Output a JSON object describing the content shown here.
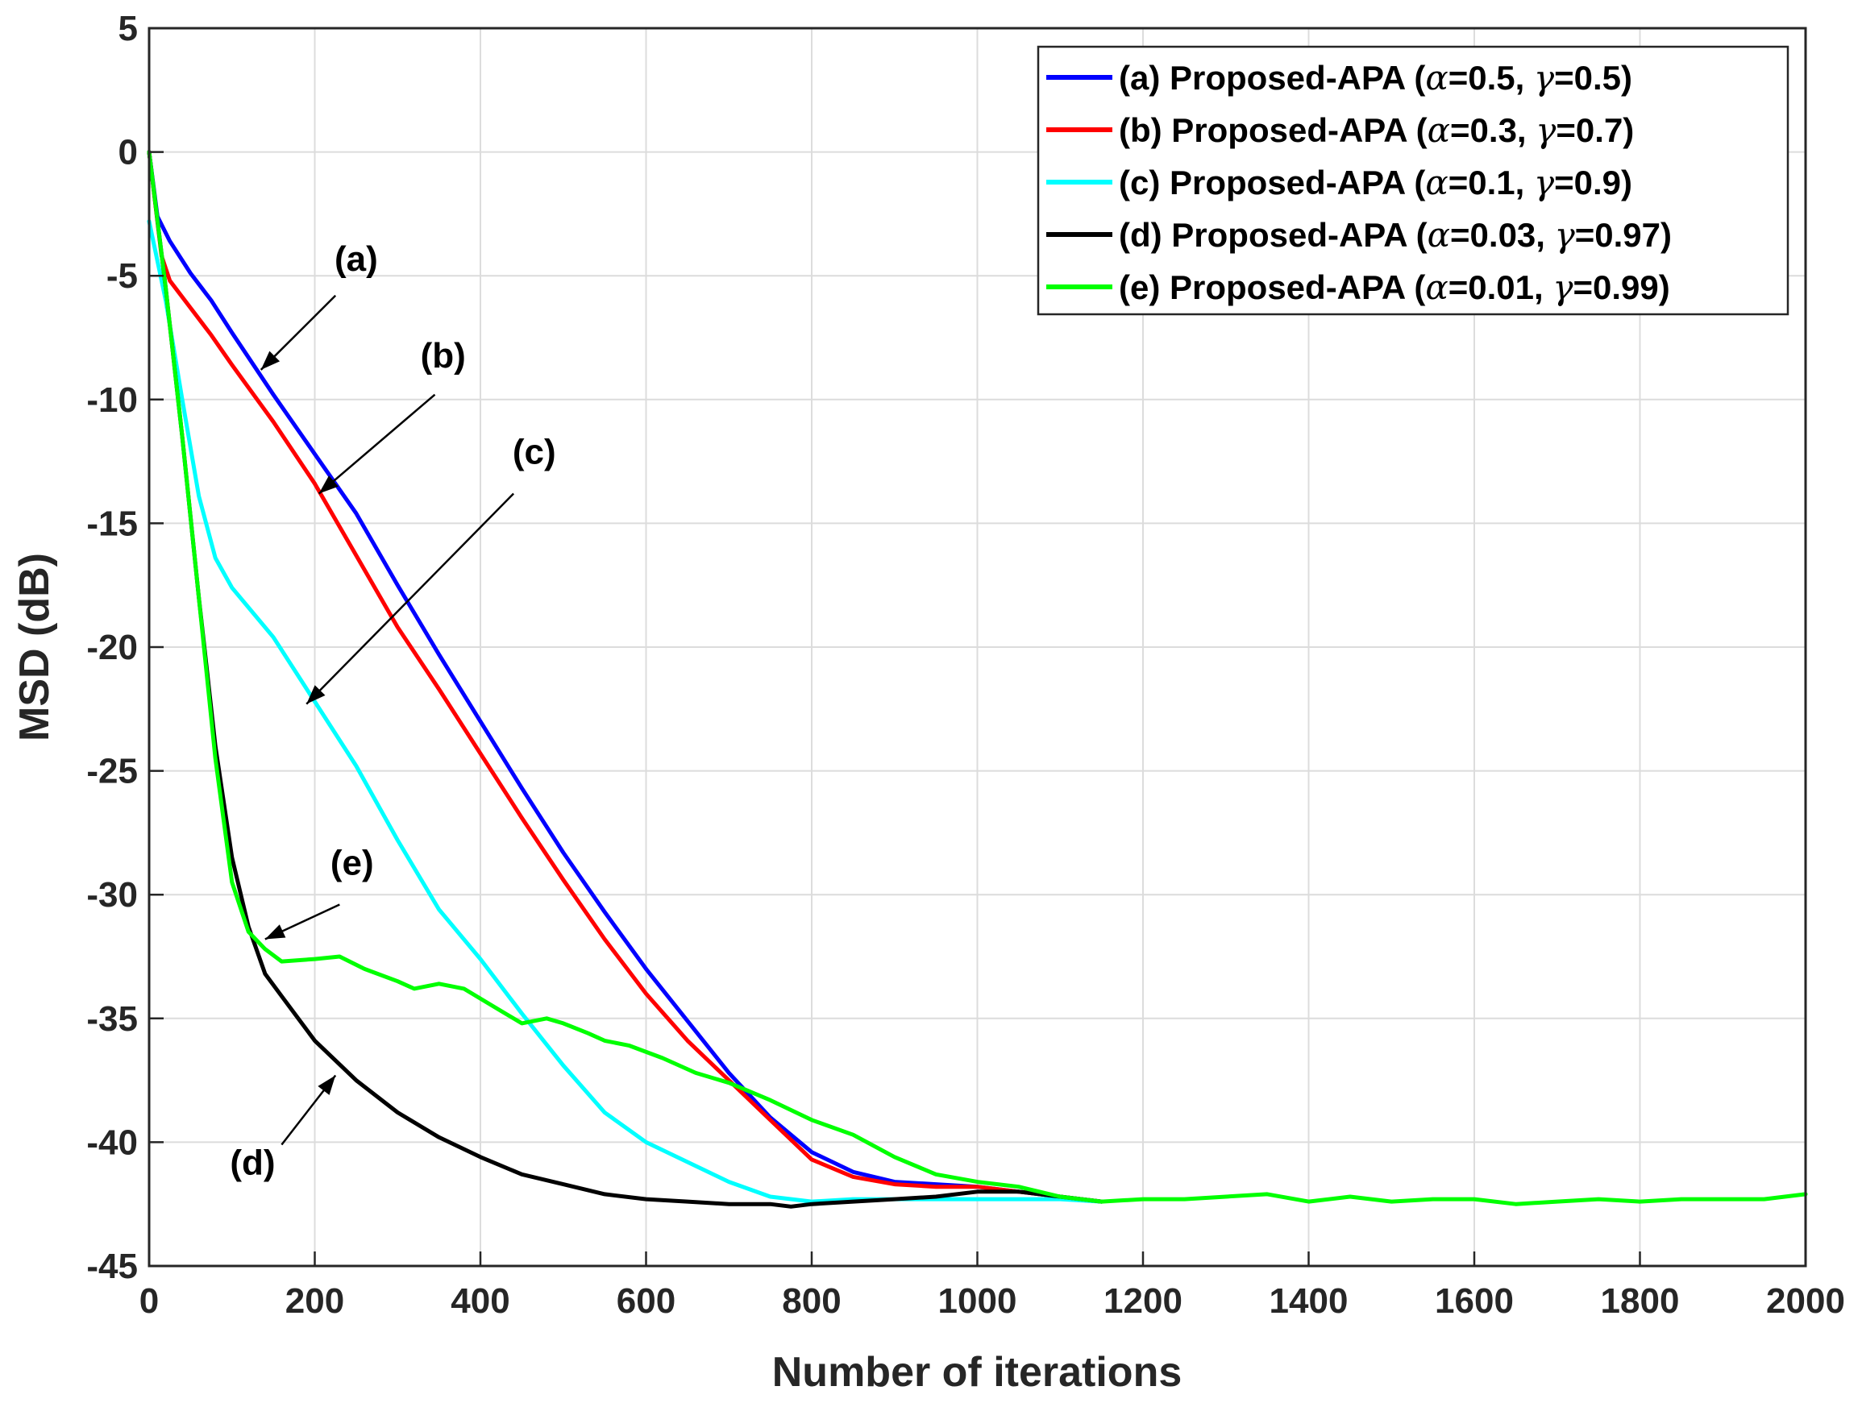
{
  "chart_data": {
    "type": "line",
    "title": "",
    "xlabel": "Number of iterations",
    "ylabel": "MSD (dB)",
    "xlim": [
      0,
      2000
    ],
    "ylim": [
      -45,
      5
    ],
    "grid": true,
    "legend_position": "top-right",
    "xticks": [
      0,
      200,
      400,
      600,
      800,
      1000,
      1200,
      1400,
      1600,
      1800,
      2000
    ],
    "xtick_labels": [
      "0",
      "200",
      "400",
      "600",
      "800",
      "1000",
      "1200",
      "1400",
      "1600",
      "1800",
      "2000"
    ],
    "yticks": [
      5,
      0,
      -5,
      -10,
      -15,
      -20,
      -25,
      -30,
      -35,
      -40,
      -45
    ],
    "ytick_labels": [
      "5",
      "0",
      "-5",
      "-10",
      "-15",
      "-20",
      "-25",
      "-30",
      "-35",
      "-40",
      "-45"
    ],
    "series": [
      {
        "key": "a",
        "color": "#0000ff",
        "legend": {
          "prefix": "(a) Proposed-APA (",
          "alpha_sym": "α",
          "alpha_val": "=0.5, ",
          "gamma_sym": "γ",
          "gamma_val": "=0.5)"
        },
        "points": [
          [
            0,
            0
          ],
          [
            10,
            -2.6
          ],
          [
            25,
            -3.6
          ],
          [
            50,
            -4.9
          ],
          [
            75,
            -6.0
          ],
          [
            100,
            -7.3
          ],
          [
            150,
            -9.8
          ],
          [
            200,
            -12.2
          ],
          [
            250,
            -14.6
          ],
          [
            300,
            -17.5
          ],
          [
            350,
            -20.3
          ],
          [
            400,
            -23.0
          ],
          [
            450,
            -25.7
          ],
          [
            500,
            -28.3
          ],
          [
            550,
            -30.7
          ],
          [
            600,
            -33.0
          ],
          [
            650,
            -35.1
          ],
          [
            700,
            -37.2
          ],
          [
            750,
            -39.0
          ],
          [
            800,
            -40.4
          ],
          [
            850,
            -41.2
          ],
          [
            900,
            -41.6
          ],
          [
            950,
            -41.7
          ],
          [
            1000,
            -41.8
          ],
          [
            1050,
            -42.0
          ],
          [
            1100,
            -42.2
          ],
          [
            1150,
            -42.4
          ]
        ]
      },
      {
        "key": "b",
        "color": "#ff0000",
        "legend": {
          "prefix": "(b) Proposed-APA (",
          "alpha_sym": "α",
          "alpha_val": "=0.3, ",
          "gamma_sym": "γ",
          "gamma_val": "=0.7)"
        },
        "points": [
          [
            0,
            0
          ],
          [
            15,
            -4.2
          ],
          [
            25,
            -5.2
          ],
          [
            50,
            -6.3
          ],
          [
            75,
            -7.4
          ],
          [
            100,
            -8.6
          ],
          [
            150,
            -10.9
          ],
          [
            200,
            -13.4
          ],
          [
            250,
            -16.3
          ],
          [
            300,
            -19.2
          ],
          [
            350,
            -21.7
          ],
          [
            400,
            -24.3
          ],
          [
            450,
            -26.9
          ],
          [
            500,
            -29.4
          ],
          [
            550,
            -31.8
          ],
          [
            600,
            -34.0
          ],
          [
            650,
            -35.9
          ],
          [
            700,
            -37.5
          ],
          [
            750,
            -39.1
          ],
          [
            800,
            -40.7
          ],
          [
            850,
            -41.4
          ],
          [
            900,
            -41.7
          ],
          [
            950,
            -41.8
          ],
          [
            1000,
            -41.8
          ],
          [
            1050,
            -42.0
          ],
          [
            1100,
            -42.2
          ],
          [
            1150,
            -42.4
          ]
        ]
      },
      {
        "key": "c",
        "color": "#00ffff",
        "legend": {
          "prefix": "(c) Proposed-APA (",
          "alpha_sym": "α",
          "alpha_val": "=0.1, ",
          "gamma_sym": "γ",
          "gamma_val": "=0.9)"
        },
        "points": [
          [
            0,
            -2.8
          ],
          [
            20,
            -6.0
          ],
          [
            40,
            -10.0
          ],
          [
            60,
            -13.9
          ],
          [
            80,
            -16.4
          ],
          [
            100,
            -17.6
          ],
          [
            150,
            -19.6
          ],
          [
            200,
            -22.2
          ],
          [
            250,
            -24.8
          ],
          [
            300,
            -27.8
          ],
          [
            350,
            -30.6
          ],
          [
            400,
            -32.6
          ],
          [
            450,
            -34.8
          ],
          [
            500,
            -36.9
          ],
          [
            550,
            -38.8
          ],
          [
            600,
            -40.0
          ],
          [
            650,
            -40.8
          ],
          [
            700,
            -41.6
          ],
          [
            750,
            -42.2
          ],
          [
            800,
            -42.4
          ],
          [
            850,
            -42.3
          ],
          [
            900,
            -42.3
          ],
          [
            950,
            -42.3
          ],
          [
            1000,
            -42.3
          ],
          [
            1050,
            -42.3
          ],
          [
            1100,
            -42.3
          ],
          [
            1150,
            -42.4
          ]
        ]
      },
      {
        "key": "d",
        "color": "#000000",
        "legend": {
          "prefix": "(d) Proposed-APA (",
          "alpha_sym": "α",
          "alpha_val": "=0.03, ",
          "gamma_sym": "γ",
          "gamma_val": "=0.97)"
        },
        "points": [
          [
            0,
            0
          ],
          [
            20,
            -5.5
          ],
          [
            40,
            -11.5
          ],
          [
            60,
            -18.0
          ],
          [
            80,
            -24.0
          ],
          [
            100,
            -28.5
          ],
          [
            120,
            -31.3
          ],
          [
            140,
            -33.2
          ],
          [
            160,
            -34.1
          ],
          [
            200,
            -35.9
          ],
          [
            250,
            -37.5
          ],
          [
            300,
            -38.8
          ],
          [
            350,
            -39.8
          ],
          [
            400,
            -40.6
          ],
          [
            450,
            -41.3
          ],
          [
            500,
            -41.7
          ],
          [
            550,
            -42.1
          ],
          [
            600,
            -42.3
          ],
          [
            650,
            -42.4
          ],
          [
            700,
            -42.5
          ],
          [
            750,
            -42.5
          ],
          [
            775,
            -42.6
          ],
          [
            800,
            -42.5
          ],
          [
            850,
            -42.4
          ],
          [
            900,
            -42.3
          ],
          [
            950,
            -42.2
          ],
          [
            1000,
            -42.0
          ],
          [
            1050,
            -42.0
          ],
          [
            1100,
            -42.2
          ],
          [
            1150,
            -42.4
          ]
        ]
      },
      {
        "key": "e",
        "color": "#00ff00",
        "legend": {
          "prefix": "(e) Proposed-APA (",
          "alpha_sym": "α",
          "alpha_val": "=0.01, ",
          "gamma_sym": "γ",
          "gamma_val": "=0.99)"
        },
        "points": [
          [
            0,
            0
          ],
          [
            20,
            -5.5
          ],
          [
            40,
            -11.5
          ],
          [
            60,
            -18.0
          ],
          [
            80,
            -24.5
          ],
          [
            100,
            -29.5
          ],
          [
            120,
            -31.5
          ],
          [
            140,
            -32.2
          ],
          [
            160,
            -32.7
          ],
          [
            200,
            -32.6
          ],
          [
            230,
            -32.5
          ],
          [
            260,
            -33.0
          ],
          [
            300,
            -33.5
          ],
          [
            320,
            -33.8
          ],
          [
            350,
            -33.6
          ],
          [
            380,
            -33.8
          ],
          [
            420,
            -34.6
          ],
          [
            450,
            -35.2
          ],
          [
            480,
            -35.0
          ],
          [
            500,
            -35.2
          ],
          [
            530,
            -35.6
          ],
          [
            550,
            -35.9
          ],
          [
            580,
            -36.1
          ],
          [
            620,
            -36.6
          ],
          [
            660,
            -37.2
          ],
          [
            700,
            -37.6
          ],
          [
            750,
            -38.3
          ],
          [
            800,
            -39.1
          ],
          [
            850,
            -39.7
          ],
          [
            900,
            -40.6
          ],
          [
            950,
            -41.3
          ],
          [
            1000,
            -41.6
          ],
          [
            1050,
            -41.8
          ],
          [
            1100,
            -42.2
          ],
          [
            1150,
            -42.4
          ],
          [
            1200,
            -42.3
          ],
          [
            1250,
            -42.3
          ],
          [
            1300,
            -42.2
          ],
          [
            1350,
            -42.1
          ],
          [
            1400,
            -42.4
          ],
          [
            1450,
            -42.2
          ],
          [
            1500,
            -42.4
          ],
          [
            1550,
            -42.3
          ],
          [
            1600,
            -42.3
          ],
          [
            1650,
            -42.5
          ],
          [
            1700,
            -42.4
          ],
          [
            1750,
            -42.3
          ],
          [
            1800,
            -42.4
          ],
          [
            1850,
            -42.3
          ],
          [
            1900,
            -42.3
          ],
          [
            1950,
            -42.3
          ],
          [
            2000,
            -42.1
          ]
        ]
      }
    ],
    "annotations": [
      {
        "label": "(a)",
        "text_at": [
          250,
          -4.8
        ],
        "arrow_from": [
          225,
          -5.8
        ],
        "arrow_to": [
          135,
          -8.8
        ]
      },
      {
        "label": "(b)",
        "text_at": [
          355,
          -8.7
        ],
        "arrow_from": [
          345,
          -9.8
        ],
        "arrow_to": [
          205,
          -13.8
        ]
      },
      {
        "label": "(c)",
        "text_at": [
          465,
          -12.6
        ],
        "arrow_from": [
          440,
          -13.8
        ],
        "arrow_to": [
          190,
          -22.3
        ]
      },
      {
        "label": "(e)",
        "text_at": [
          245,
          -29.2
        ],
        "arrow_from": [
          230,
          -30.4
        ],
        "arrow_to": [
          140,
          -31.8
        ]
      },
      {
        "label": "(d)",
        "text_at": [
          125,
          -41.3
        ],
        "arrow_from": [
          160,
          -40.1
        ],
        "arrow_to": [
          225,
          -37.3
        ]
      }
    ]
  }
}
